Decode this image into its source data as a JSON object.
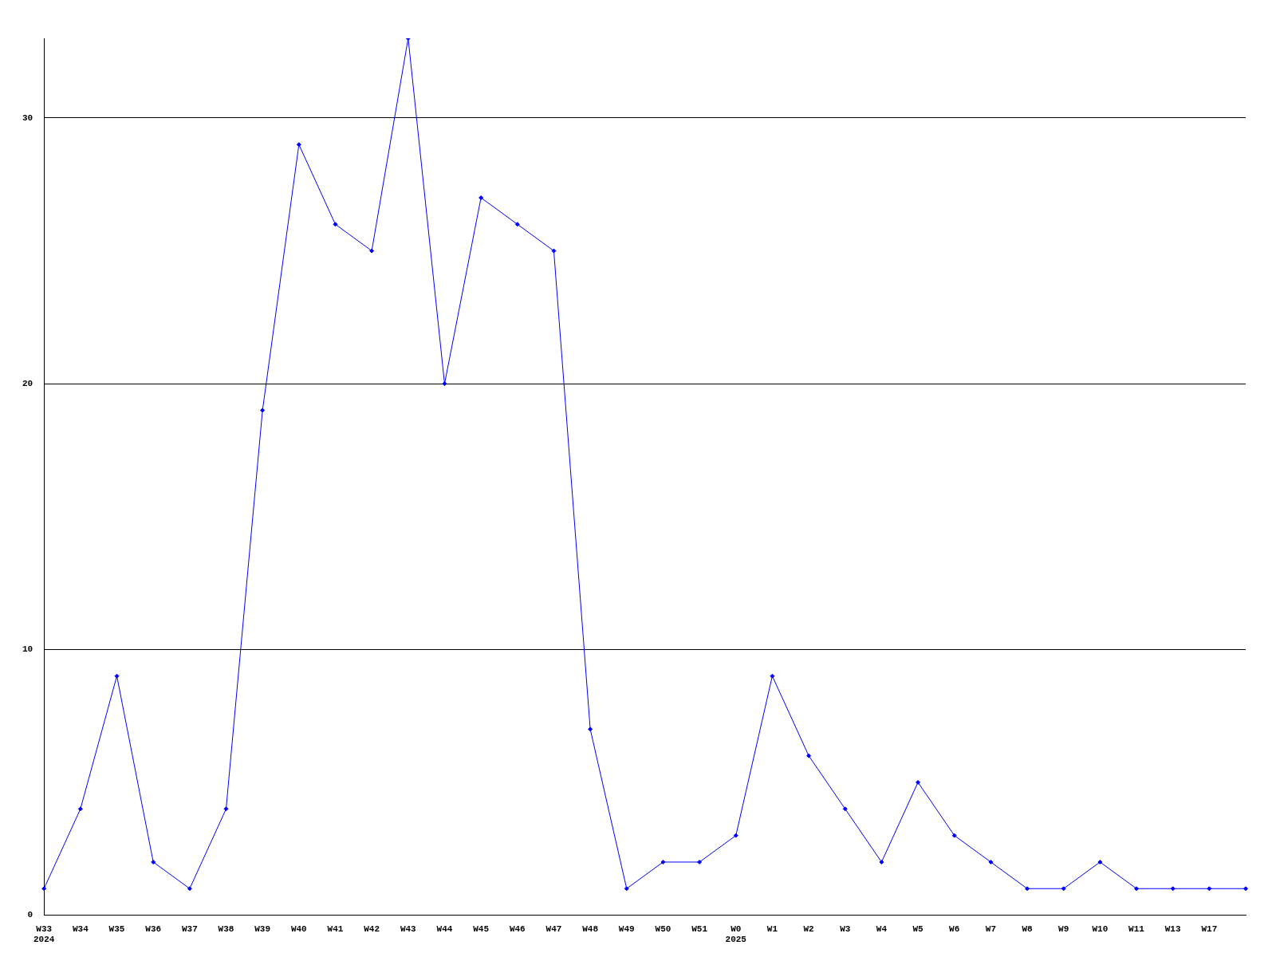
{
  "chart_data": {
    "type": "line",
    "categories": [
      "W33",
      "W34",
      "W35",
      "W36",
      "W37",
      "W38",
      "W39",
      "W40",
      "W41",
      "W42",
      "W43",
      "W44",
      "W45",
      "W46",
      "W47",
      "W48",
      "W49",
      "W50",
      "W51",
      "W0",
      "W1",
      "W2",
      "W3",
      "W4",
      "W5",
      "W6",
      "W7",
      "W8",
      "W9",
      "W10",
      "W11",
      "W13",
      "W17",
      null
    ],
    "series": [
      {
        "color": "#0000ff",
        "values": [
          1,
          4,
          9,
          2,
          1,
          4,
          19,
          29,
          26,
          25,
          33,
          20,
          27,
          26,
          25,
          7,
          1,
          2,
          2,
          3,
          9,
          6,
          4,
          2,
          5,
          3,
          2,
          1,
          1,
          2,
          1,
          1,
          1,
          1
        ]
      }
    ],
    "ylim": [
      0,
      33
    ],
    "yticks": [
      0,
      10,
      20,
      30
    ],
    "grid": "y",
    "legend": false,
    "marker": "diamond",
    "line_style": "solid",
    "annotations": [
      "2024",
      "2025"
    ]
  }
}
